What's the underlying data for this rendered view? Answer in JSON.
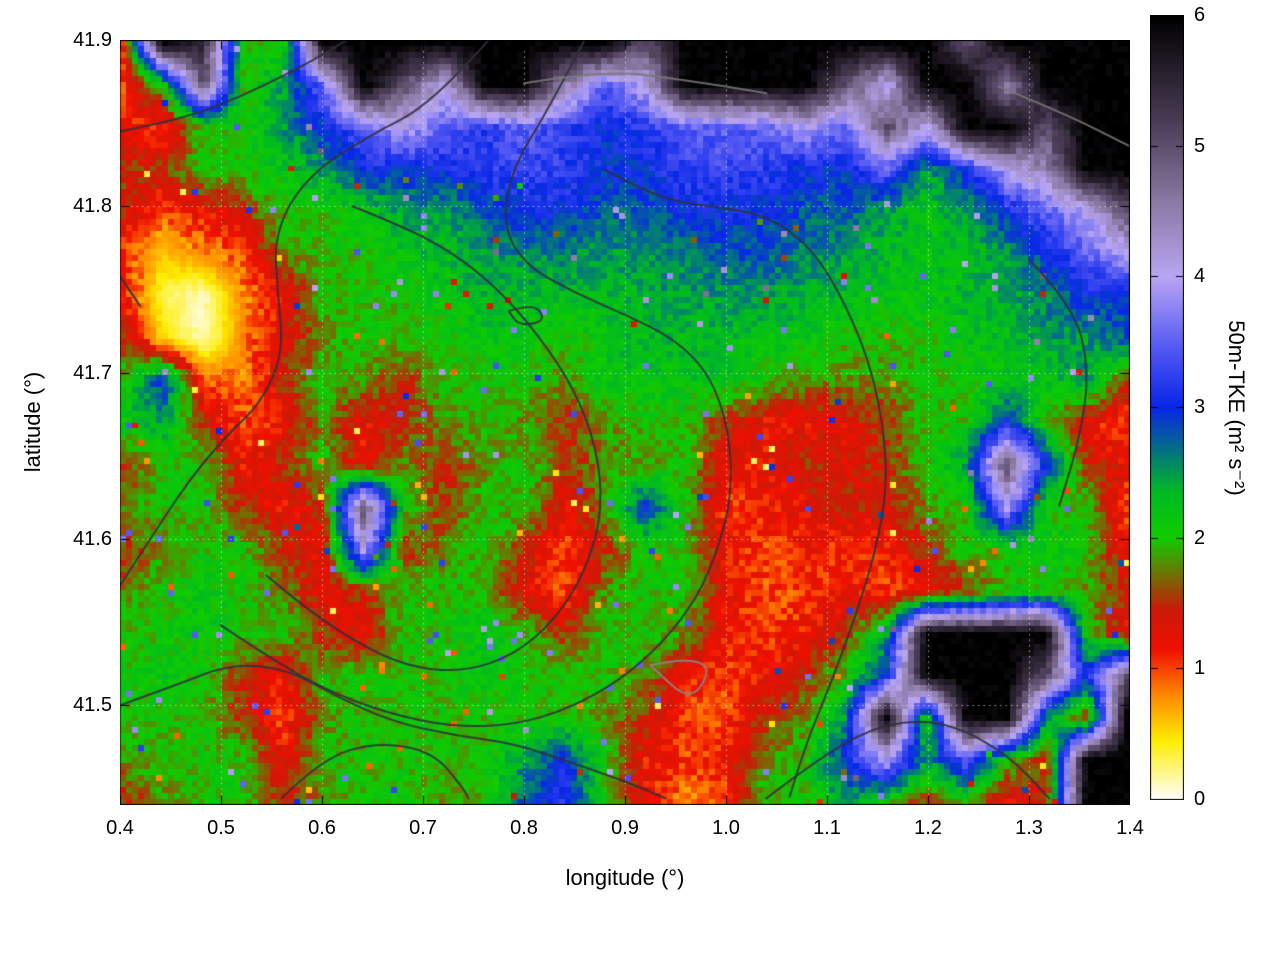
{
  "chart_data": {
    "type": "heatmap",
    "title": "",
    "xlabel": "longitude (°)",
    "ylabel": "latitude (°)",
    "x_range": [
      0.4,
      1.4
    ],
    "y_range": [
      41.44,
      41.9
    ],
    "x_ticks": [
      0.4,
      0.5,
      0.6,
      0.7,
      0.8,
      0.9,
      1.0,
      1.1,
      1.2,
      1.3,
      1.4
    ],
    "y_ticks": [
      41.5,
      41.6,
      41.7,
      41.8,
      41.9
    ],
    "grid_lines": "dotted",
    "colorbar": {
      "label": "50m-TKE (m² s⁻²)",
      "min": 0,
      "max": 6,
      "ticks": [
        0,
        1,
        2,
        3,
        4,
        5,
        6
      ],
      "palette": [
        {
          "v": 0.0,
          "c": "#ffffff"
        },
        {
          "v": 0.45,
          "c": "#ffee00"
        },
        {
          "v": 0.8,
          "c": "#ff8800"
        },
        {
          "v": 1.15,
          "c": "#f01000"
        },
        {
          "v": 1.45,
          "c": "#cc1a08"
        },
        {
          "v": 2.0,
          "c": "#11cc00"
        },
        {
          "v": 2.35,
          "c": "#00bb22"
        },
        {
          "v": 3.0,
          "c": "#0827e8"
        },
        {
          "v": 3.4,
          "c": "#4a52f2"
        },
        {
          "v": 4.0,
          "c": "#b9a6f2"
        },
        {
          "v": 4.6,
          "c": "#8877a0"
        },
        {
          "v": 5.2,
          "c": "#4a3c55"
        },
        {
          "v": 6.0,
          "c": "#000000"
        }
      ]
    },
    "grid": {
      "description": "50m TKE field (m2/s2), rows top(41.90) to bottom(41.44), cols lon 0.40 to 1.40",
      "values": [
        [
          1.2,
          6,
          5.5,
          2,
          2,
          6,
          6,
          6,
          6,
          6,
          6,
          6,
          6,
          5,
          6,
          6,
          6,
          6,
          6,
          6,
          6,
          5,
          6,
          6,
          6,
          6
        ],
        [
          1,
          2,
          5,
          2,
          2.5,
          3.5,
          6,
          5,
          4,
          6,
          6,
          4.5,
          3.5,
          4,
          6,
          6,
          6,
          6,
          5,
          4,
          6,
          6,
          4.5,
          6,
          6,
          6
        ],
        [
          1.2,
          1,
          2,
          2,
          2.5,
          3,
          3.5,
          4,
          3.5,
          3.2,
          3.5,
          3.2,
          3,
          3.2,
          3.5,
          3.5,
          3.5,
          4,
          3.5,
          5,
          4,
          6,
          6,
          5,
          6,
          6
        ],
        [
          1.5,
          1.5,
          2,
          2,
          2.2,
          2.5,
          3,
          3,
          3,
          3.2,
          3.3,
          3.2,
          3,
          3,
          3.2,
          3.3,
          3.2,
          3,
          3,
          3.5,
          2.5,
          3,
          4,
          4.5,
          6,
          6
        ],
        [
          1.5,
          1,
          1.2,
          1.5,
          2,
          2,
          2.2,
          2.5,
          2.5,
          2.8,
          3,
          3,
          2.8,
          2.8,
          3,
          3,
          3,
          2.8,
          2.8,
          2.5,
          2.2,
          2.5,
          3,
          3.5,
          4,
          5
        ],
        [
          1,
          0.6,
          0.8,
          1,
          1.8,
          2,
          2,
          2.2,
          2.3,
          2.5,
          2.6,
          2.6,
          2.5,
          2.5,
          2.6,
          2.8,
          2.8,
          2.6,
          2.5,
          2.3,
          2.2,
          2.3,
          2.5,
          3,
          3.5,
          4
        ],
        [
          1.2,
          0.3,
          0.1,
          0.8,
          1.2,
          2,
          2,
          2,
          2.2,
          2.3,
          2.3,
          2.3,
          2.3,
          2.4,
          2.5,
          2.5,
          2.5,
          2.4,
          2.3,
          2.2,
          2.2,
          2.3,
          2.4,
          2.6,
          3,
          3
        ],
        [
          1.5,
          0.5,
          0.1,
          0.8,
          1.3,
          1.8,
          2,
          2,
          2,
          2.2,
          2.2,
          2,
          2.2,
          2.3,
          2.3,
          2.3,
          2.2,
          2.2,
          2,
          2,
          2,
          2.2,
          2.3,
          2.5,
          2.5,
          2.8
        ],
        [
          2,
          3,
          1,
          0.8,
          1.5,
          2,
          1.8,
          1.5,
          2,
          2,
          2,
          1.8,
          2.2,
          2.2,
          2.2,
          2.2,
          2,
          1.8,
          1.8,
          1.8,
          2,
          2,
          2.2,
          2.2,
          2.5,
          1.5
        ],
        [
          2.2,
          2.5,
          1.5,
          1,
          1.2,
          1.8,
          1.2,
          1.5,
          1.8,
          2,
          1.8,
          1.5,
          1.8,
          2,
          2,
          1.5,
          1.2,
          1.2,
          1.3,
          1.5,
          2,
          2,
          3,
          2,
          1.2,
          1
        ],
        [
          1.5,
          2,
          2,
          1.2,
          1.5,
          2,
          1.2,
          1.8,
          1.5,
          1.8,
          2,
          1.5,
          1.8,
          1.8,
          2,
          1.2,
          1.2,
          1.5,
          1.3,
          1.5,
          2,
          2.5,
          5,
          3,
          1.5,
          1.2
        ],
        [
          1.8,
          2,
          2,
          1.5,
          1.2,
          1.5,
          5,
          2,
          1.5,
          2,
          2,
          1.2,
          1.8,
          3,
          2,
          1,
          1.2,
          1.2,
          1.5,
          1.3,
          1.8,
          2,
          4,
          2,
          2,
          1
        ],
        [
          1.5,
          1.8,
          2,
          2,
          1.5,
          1.2,
          4,
          1.5,
          1.8,
          2,
          1.5,
          1,
          1.5,
          2,
          2,
          1.2,
          1,
          1.2,
          1,
          1.2,
          1.5,
          2,
          2,
          2.2,
          2,
          1.2
        ],
        [
          1.8,
          2,
          2.2,
          2,
          1.8,
          1.2,
          1.5,
          2,
          2,
          2,
          1.2,
          1,
          1.8,
          2,
          2,
          1.2,
          1,
          1,
          1.2,
          1,
          1.2,
          1.5,
          2,
          2,
          1.8,
          1.5
        ],
        [
          2,
          2,
          2.2,
          2,
          2,
          1.5,
          1.2,
          2,
          2,
          2.2,
          2,
          1.5,
          2,
          2,
          1.8,
          1.2,
          1,
          1.2,
          1.5,
          2.5,
          6,
          6,
          6,
          6,
          2,
          1.2
        ],
        [
          2,
          2.2,
          2,
          1.5,
          1.2,
          2,
          2,
          2,
          2,
          2.2,
          2,
          2,
          2,
          1.8,
          1.2,
          1,
          1.2,
          1.5,
          2,
          3,
          6,
          6,
          6,
          5,
          3,
          5
        ],
        [
          2,
          2,
          2,
          1.5,
          1,
          1.8,
          2,
          2,
          2,
          2,
          2,
          2,
          1.8,
          1.5,
          1,
          1,
          1.5,
          1.8,
          2.5,
          6,
          2,
          6,
          6,
          2.5,
          1.5,
          6
        ],
        [
          1.8,
          2,
          2,
          2,
          1.2,
          2,
          2,
          2,
          2,
          2,
          2.5,
          3,
          2,
          1.2,
          1,
          1.2,
          1.8,
          2,
          3,
          4,
          2.5,
          3.5,
          2,
          1.5,
          6,
          6
        ],
        [
          1.5,
          1.8,
          2,
          2,
          1.5,
          1.8,
          2,
          2,
          1.8,
          2,
          2.8,
          3.2,
          2,
          1.2,
          0.8,
          1,
          2,
          2,
          2.5,
          2,
          1.5,
          2,
          1.2,
          1.5,
          6,
          6
        ]
      ]
    },
    "contours": [
      {
        "color": "#30303c",
        "points": [
          [
            0.4,
            41.845
          ],
          [
            0.46,
            41.852
          ],
          [
            0.52,
            41.866
          ],
          [
            0.58,
            41.884
          ],
          [
            0.625,
            41.9
          ]
        ]
      },
      {
        "color": "#30303c",
        "points": [
          [
            0.765,
            41.9
          ],
          [
            0.71,
            41.862
          ],
          [
            0.645,
            41.842
          ],
          [
            0.585,
            41.818
          ],
          [
            0.553,
            41.785
          ],
          [
            0.556,
            41.748
          ],
          [
            0.562,
            41.712
          ],
          [
            0.54,
            41.682
          ],
          [
            0.505,
            41.662
          ],
          [
            0.468,
            41.635
          ],
          [
            0.43,
            41.6
          ],
          [
            0.4,
            41.572
          ]
        ]
      },
      {
        "color": "#30303c",
        "points": [
          [
            0.86,
            41.9
          ],
          [
            0.823,
            41.857
          ],
          [
            0.79,
            41.825
          ],
          [
            0.778,
            41.79
          ],
          [
            0.8,
            41.765
          ],
          [
            0.85,
            41.748
          ],
          [
            0.9,
            41.735
          ],
          [
            0.95,
            41.72
          ],
          [
            0.985,
            41.698
          ],
          [
            1.003,
            41.665
          ],
          [
            1.006,
            41.628
          ],
          [
            0.993,
            41.595
          ],
          [
            0.972,
            41.565
          ],
          [
            0.938,
            41.538
          ],
          [
            0.895,
            41.515
          ],
          [
            0.845,
            41.498
          ],
          [
            0.79,
            41.488
          ],
          [
            0.73,
            41.487
          ],
          [
            0.665,
            41.495
          ],
          [
            0.6,
            41.51
          ],
          [
            0.545,
            41.53
          ],
          [
            0.5,
            41.548
          ]
        ]
      },
      {
        "color": "#30303c",
        "points": [
          [
            0.88,
            41.822
          ],
          [
            0.93,
            41.805
          ],
          [
            0.985,
            41.8
          ],
          [
            1.04,
            41.795
          ],
          [
            1.085,
            41.775
          ],
          [
            1.115,
            41.745
          ],
          [
            1.14,
            41.71
          ],
          [
            1.155,
            41.672
          ],
          [
            1.16,
            41.632
          ],
          [
            1.148,
            41.592
          ],
          [
            1.128,
            41.553
          ],
          [
            1.105,
            41.515
          ],
          [
            1.08,
            41.478
          ],
          [
            1.063,
            41.445
          ]
        ]
      },
      {
        "color": "#30303c",
        "points": [
          [
            0.63,
            41.8
          ],
          [
            0.68,
            41.788
          ],
          [
            0.73,
            41.772
          ],
          [
            0.775,
            41.75
          ],
          [
            0.815,
            41.722
          ],
          [
            0.85,
            41.69
          ],
          [
            0.872,
            41.655
          ],
          [
            0.878,
            41.618
          ],
          [
            0.862,
            41.582
          ],
          [
            0.832,
            41.552
          ],
          [
            0.79,
            41.53
          ],
          [
            0.74,
            41.52
          ],
          [
            0.685,
            41.523
          ],
          [
            0.633,
            41.538
          ],
          [
            0.585,
            41.558
          ],
          [
            0.545,
            41.578
          ]
        ]
      },
      {
        "color": "#30303c",
        "points": [
          [
            0.4,
            41.5
          ],
          [
            0.455,
            41.512
          ],
          [
            0.51,
            41.525
          ],
          [
            0.565,
            41.522
          ],
          [
            0.615,
            41.505
          ],
          [
            0.67,
            41.49
          ],
          [
            0.73,
            41.482
          ],
          [
            0.79,
            41.477
          ],
          [
            0.85,
            41.465
          ],
          [
            0.91,
            41.452
          ],
          [
            0.94,
            41.444
          ]
        ]
      },
      {
        "color": "#30303c",
        "points": [
          [
            0.56,
            41.444
          ],
          [
            0.6,
            41.468
          ],
          [
            0.655,
            41.478
          ],
          [
            0.71,
            41.472
          ],
          [
            0.74,
            41.45
          ],
          [
            0.745,
            41.444
          ]
        ]
      },
      {
        "color": "#30303c",
        "points": [
          [
            1.3,
            41.768
          ],
          [
            1.345,
            41.74
          ],
          [
            1.36,
            41.7
          ],
          [
            1.35,
            41.66
          ],
          [
            1.33,
            41.62
          ]
        ]
      },
      {
        "color": "#30303c",
        "points": [
          [
            1.04,
            41.444
          ],
          [
            1.1,
            41.472
          ],
          [
            1.16,
            41.49
          ],
          [
            1.22,
            41.49
          ],
          [
            1.28,
            41.47
          ],
          [
            1.32,
            41.444
          ]
        ]
      },
      {
        "color": "#30303c",
        "points": [
          [
            0.4,
            41.758
          ],
          [
            0.42,
            41.74
          ]
        ]
      },
      {
        "color": "#30303c",
        "points": [
          [
            0.785,
            41.737
          ],
          [
            0.81,
            41.742
          ],
          [
            0.822,
            41.731
          ],
          [
            0.795,
            41.728
          ],
          [
            0.785,
            41.737
          ]
        ]
      },
      {
        "color": "#777777",
        "points": [
          [
            0.8,
            41.874
          ],
          [
            0.88,
            41.882
          ],
          [
            0.96,
            41.876
          ],
          [
            1.04,
            41.868
          ]
        ]
      },
      {
        "color": "#777777",
        "points": [
          [
            1.27,
            41.872
          ],
          [
            1.335,
            41.856
          ],
          [
            1.4,
            41.836
          ]
        ]
      },
      {
        "color": "#888888",
        "points": [
          [
            0.925,
            41.524
          ],
          [
            0.99,
            41.532
          ],
          [
            0.968,
            41.5
          ],
          [
            0.925,
            41.524
          ]
        ]
      }
    ]
  }
}
